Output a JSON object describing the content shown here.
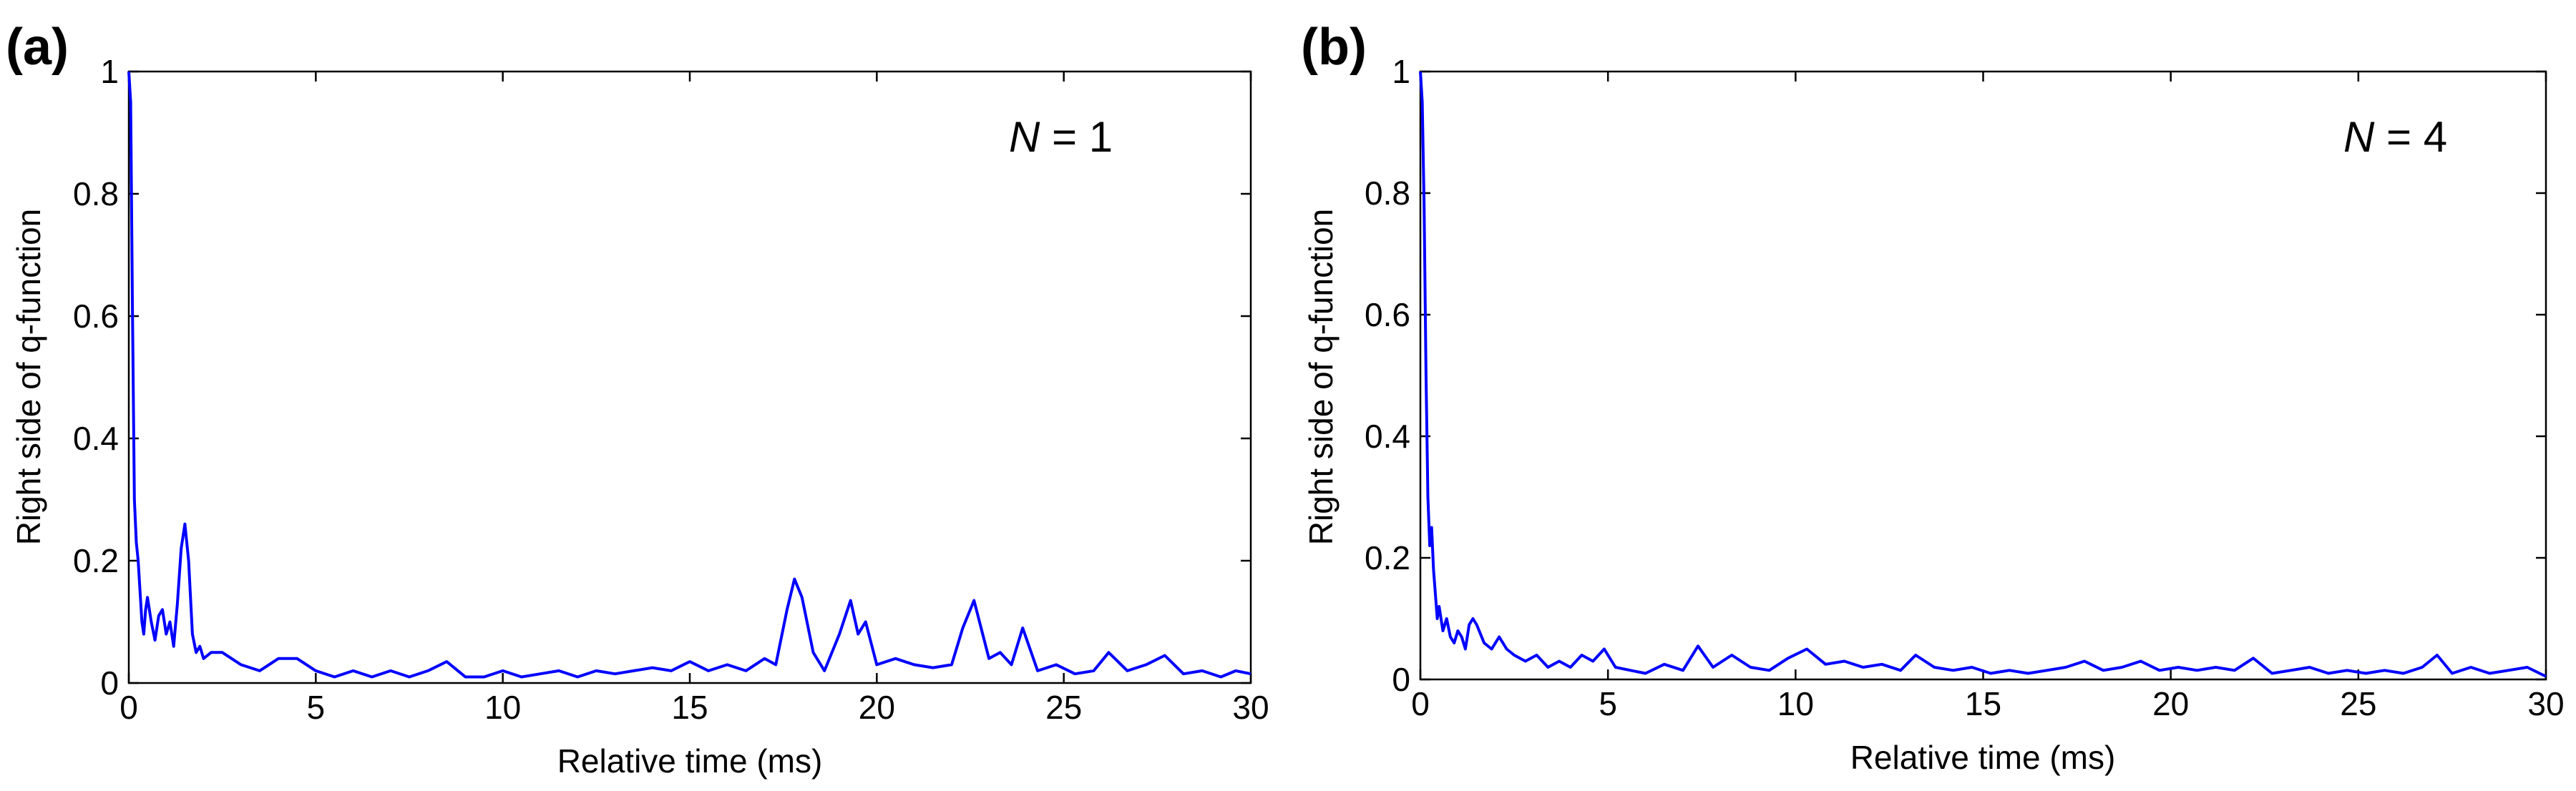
{
  "chart_data": [
    {
      "type": "line",
      "panel_label": "(a)",
      "annotation": {
        "variable": "N",
        "rest": " = 1"
      },
      "xlabel": "Relative time (ms)",
      "ylabel": "Right side of q-function",
      "xlim": [
        0,
        30
      ],
      "ylim": [
        0,
        1
      ],
      "xticks": [
        0,
        5,
        10,
        15,
        20,
        25,
        30
      ],
      "yticks": [
        0,
        0.2,
        0.4,
        0.6,
        0.8,
        1
      ],
      "ytick_labels": [
        "0",
        "0.2",
        "0.4",
        "0.6",
        "0.8",
        "1"
      ],
      "series": [
        {
          "name": "q-function right side",
          "color": "#0000ff",
          "x": [
            0,
            0.05,
            0.1,
            0.15,
            0.2,
            0.25,
            0.3,
            0.35,
            0.4,
            0.45,
            0.5,
            0.6,
            0.7,
            0.8,
            0.9,
            1.0,
            1.1,
            1.2,
            1.3,
            1.4,
            1.5,
            1.6,
            1.7,
            1.8,
            1.9,
            2.0,
            2.2,
            2.5,
            3.0,
            3.5,
            4.0,
            4.5,
            5.0,
            5.5,
            6.0,
            6.5,
            7.0,
            7.5,
            8.0,
            8.5,
            9.0,
            9.5,
            10.0,
            10.5,
            11.0,
            11.5,
            12.0,
            12.5,
            13.0,
            13.5,
            14.0,
            14.5,
            15.0,
            15.5,
            16.0,
            16.5,
            17.0,
            17.3,
            17.6,
            17.8,
            18.0,
            18.3,
            18.6,
            19.0,
            19.3,
            19.5,
            19.7,
            20.0,
            20.5,
            21.0,
            21.5,
            22.0,
            22.3,
            22.6,
            23.0,
            23.3,
            23.6,
            23.9,
            24.3,
            24.8,
            25.3,
            25.8,
            26.2,
            26.7,
            27.2,
            27.7,
            28.2,
            28.7,
            29.2,
            29.6,
            30.0
          ],
          "y": [
            1.0,
            0.95,
            0.6,
            0.3,
            0.23,
            0.2,
            0.15,
            0.1,
            0.08,
            0.12,
            0.14,
            0.1,
            0.07,
            0.11,
            0.12,
            0.08,
            0.1,
            0.06,
            0.13,
            0.22,
            0.26,
            0.2,
            0.08,
            0.05,
            0.06,
            0.04,
            0.05,
            0.05,
            0.03,
            0.02,
            0.04,
            0.04,
            0.02,
            0.01,
            0.02,
            0.01,
            0.02,
            0.01,
            0.02,
            0.035,
            0.01,
            0.01,
            0.02,
            0.01,
            0.015,
            0.02,
            0.01,
            0.02,
            0.015,
            0.02,
            0.025,
            0.02,
            0.035,
            0.02,
            0.03,
            0.02,
            0.04,
            0.03,
            0.12,
            0.17,
            0.14,
            0.05,
            0.02,
            0.08,
            0.135,
            0.08,
            0.1,
            0.03,
            0.04,
            0.03,
            0.025,
            0.03,
            0.09,
            0.135,
            0.04,
            0.05,
            0.03,
            0.09,
            0.02,
            0.03,
            0.015,
            0.02,
            0.05,
            0.02,
            0.03,
            0.045,
            0.015,
            0.02,
            0.01,
            0.02,
            0.015
          ]
        }
      ]
    },
    {
      "type": "line",
      "panel_label": "(b)",
      "annotation": {
        "variable": "N",
        "rest": " = 4"
      },
      "xlabel": "Relative time (ms)",
      "ylabel": "Right side of q-function",
      "xlim": [
        0,
        30
      ],
      "ylim": [
        0,
        1
      ],
      "xticks": [
        0,
        5,
        10,
        15,
        20,
        25,
        30
      ],
      "yticks": [
        0,
        0.2,
        0.4,
        0.6,
        0.8,
        1
      ],
      "ytick_labels": [
        "0",
        "0.2",
        "0.4",
        "0.6",
        "0.8",
        "1"
      ],
      "series": [
        {
          "name": "q-function right side",
          "color": "#0000ff",
          "x": [
            0,
            0.05,
            0.1,
            0.15,
            0.2,
            0.25,
            0.3,
            0.35,
            0.4,
            0.45,
            0.5,
            0.6,
            0.7,
            0.8,
            0.9,
            1.0,
            1.1,
            1.2,
            1.3,
            1.4,
            1.5,
            1.7,
            1.9,
            2.1,
            2.3,
            2.5,
            2.8,
            3.1,
            3.4,
            3.7,
            4.0,
            4.3,
            4.6,
            4.9,
            5.2,
            5.6,
            6.0,
            6.5,
            7.0,
            7.4,
            7.8,
            8.3,
            8.8,
            9.3,
            9.8,
            10.3,
            10.8,
            11.3,
            11.8,
            12.3,
            12.8,
            13.2,
            13.7,
            14.2,
            14.7,
            15.2,
            15.7,
            16.2,
            16.7,
            17.2,
            17.7,
            18.2,
            18.7,
            19.2,
            19.7,
            20.2,
            20.7,
            21.2,
            21.7,
            22.2,
            22.7,
            23.2,
            23.7,
            24.2,
            24.7,
            25.2,
            25.7,
            26.2,
            26.7,
            27.1,
            27.5,
            28.0,
            28.5,
            29.0,
            29.5,
            30.0
          ],
          "y": [
            1.0,
            0.95,
            0.78,
            0.5,
            0.3,
            0.22,
            0.25,
            0.18,
            0.14,
            0.1,
            0.12,
            0.08,
            0.1,
            0.07,
            0.06,
            0.08,
            0.07,
            0.05,
            0.09,
            0.1,
            0.09,
            0.06,
            0.05,
            0.07,
            0.05,
            0.04,
            0.03,
            0.04,
            0.02,
            0.03,
            0.02,
            0.04,
            0.03,
            0.05,
            0.02,
            0.015,
            0.01,
            0.025,
            0.015,
            0.055,
            0.02,
            0.04,
            0.02,
            0.015,
            0.035,
            0.05,
            0.025,
            0.03,
            0.02,
            0.025,
            0.015,
            0.04,
            0.02,
            0.015,
            0.02,
            0.01,
            0.015,
            0.01,
            0.015,
            0.02,
            0.03,
            0.015,
            0.02,
            0.03,
            0.015,
            0.02,
            0.015,
            0.02,
            0.015,
            0.035,
            0.01,
            0.015,
            0.02,
            0.01,
            0.015,
            0.01,
            0.015,
            0.01,
            0.02,
            0.04,
            0.01,
            0.02,
            0.01,
            0.015,
            0.02,
            0.005
          ]
        }
      ]
    }
  ]
}
